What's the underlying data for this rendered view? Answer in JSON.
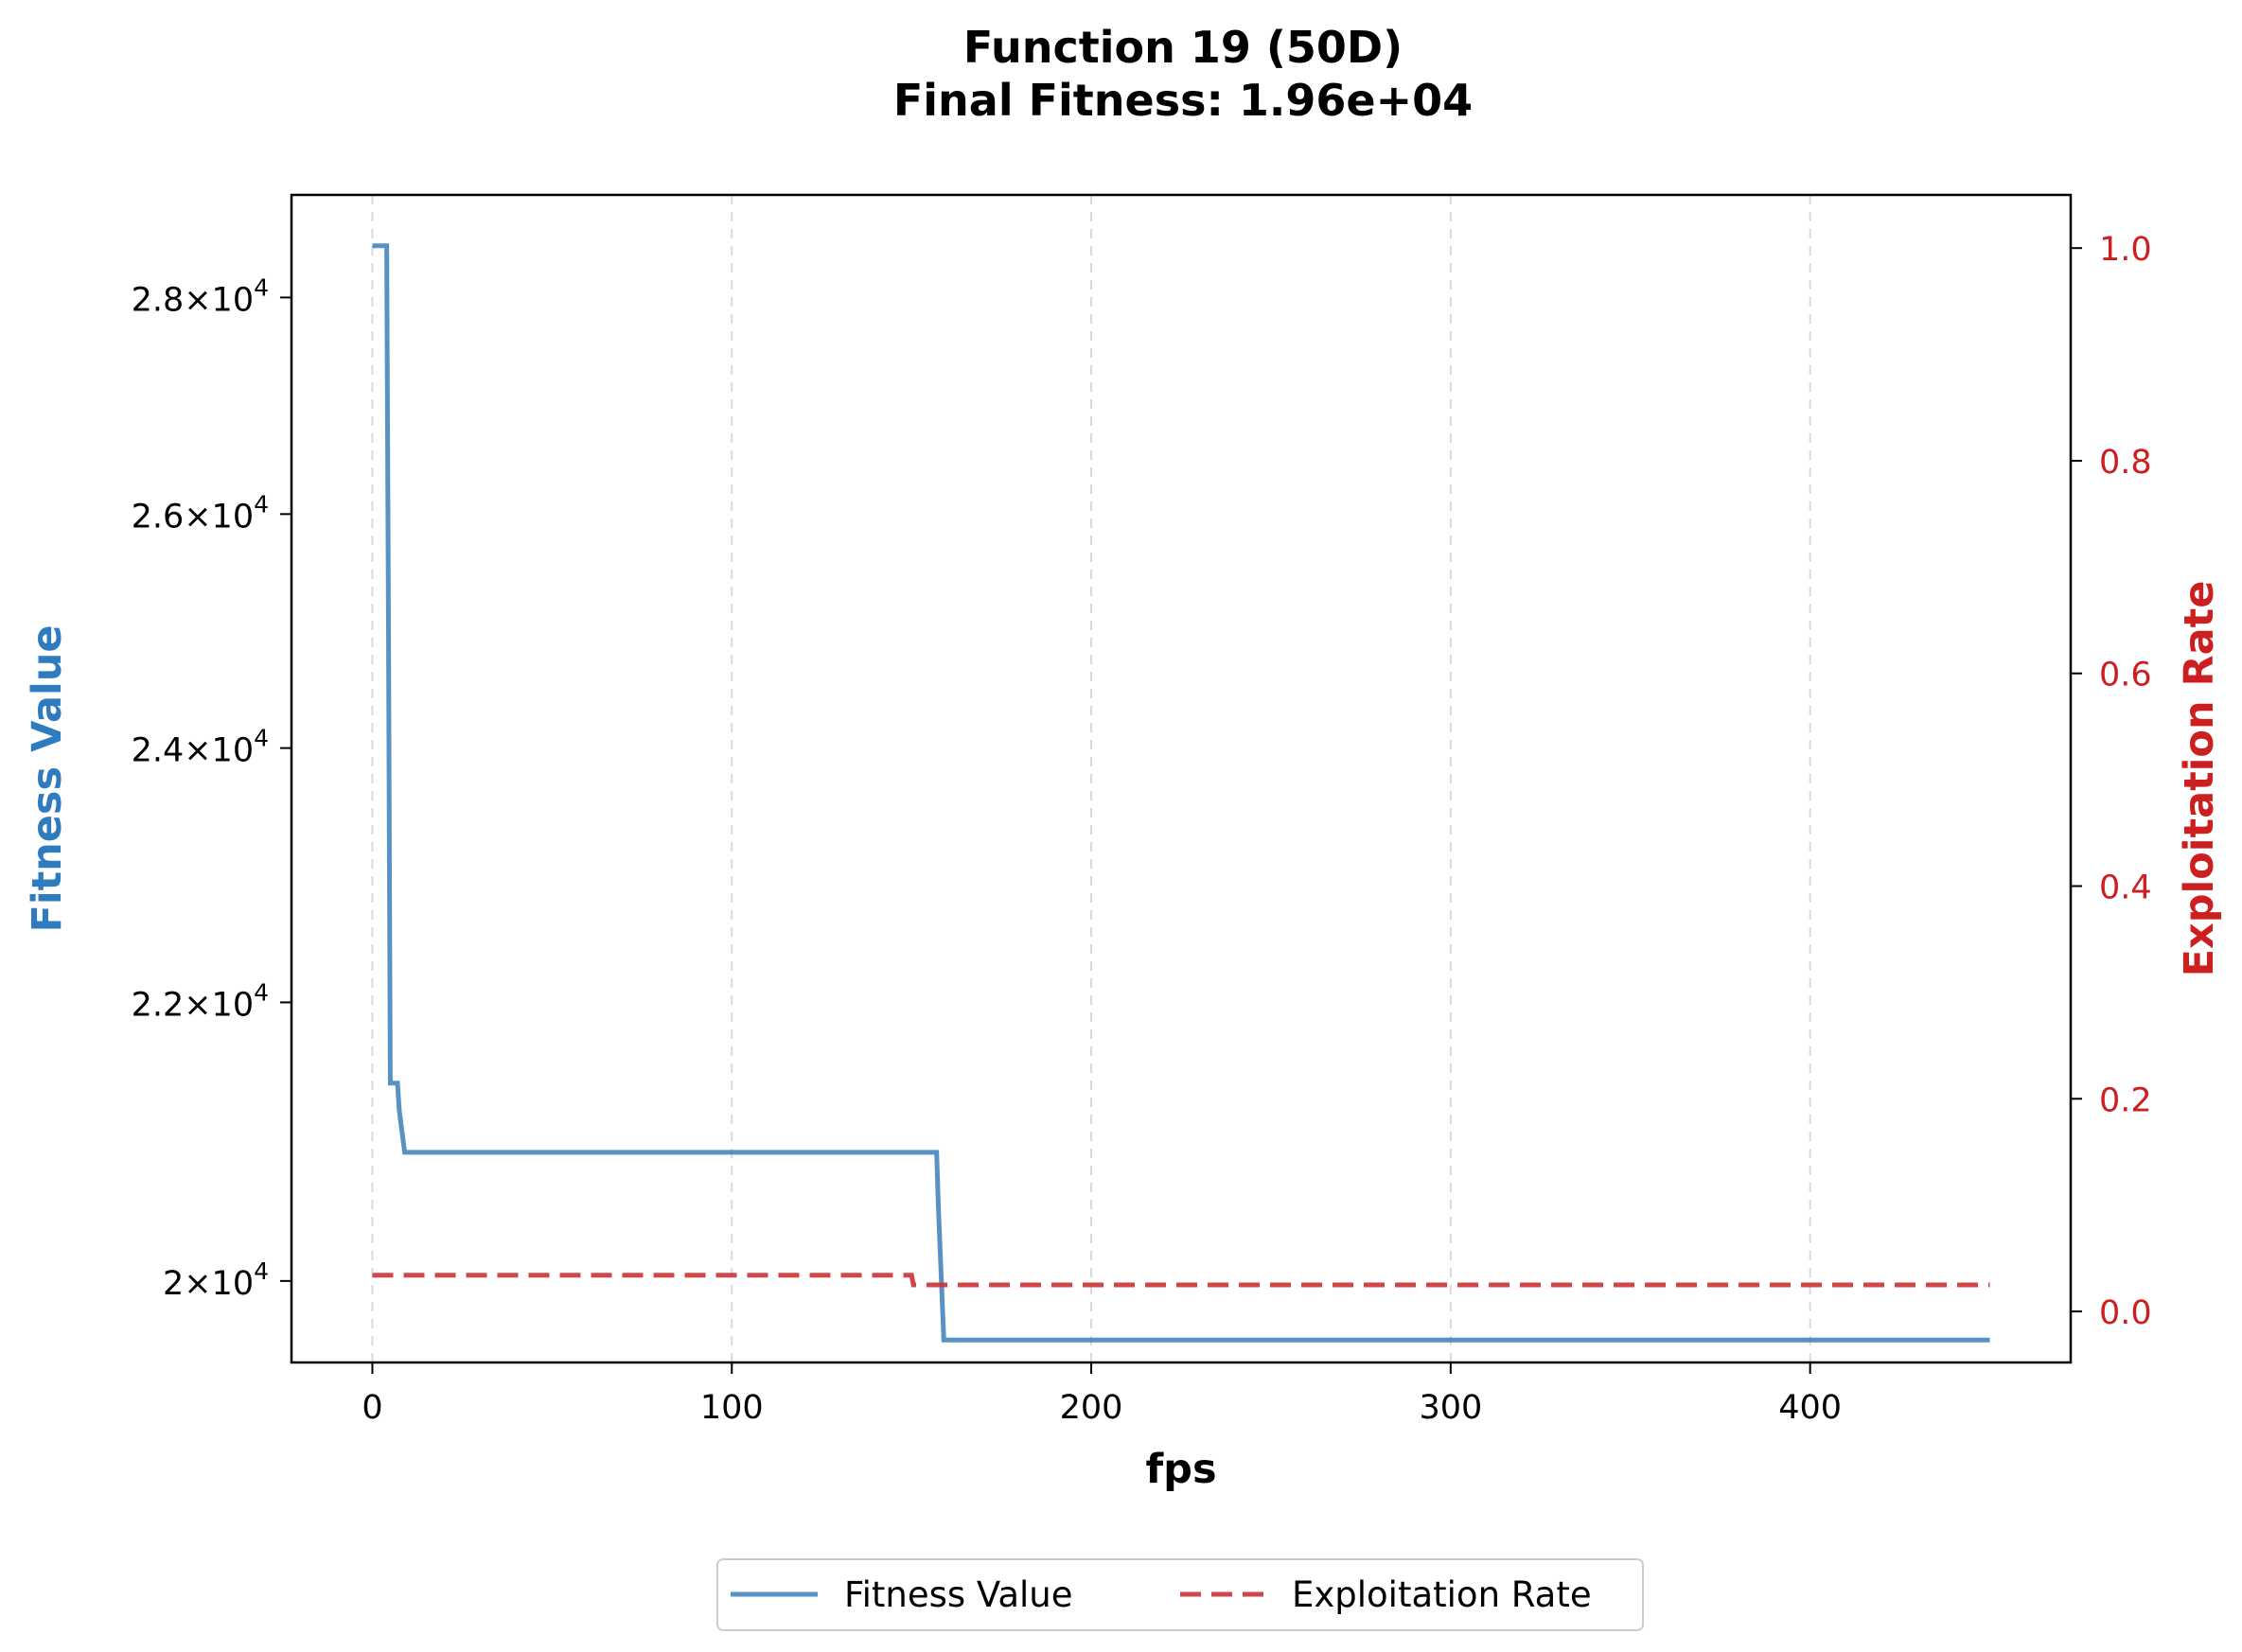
{
  "chart_data": {
    "type": "line",
    "title_line1": "Function 19 (50D)",
    "title_line2": "Final Fitness: 1.96e+04",
    "xlabel": "fps",
    "ylabel_left": "Fitness Value",
    "ylabel_right": "Exploitation Rate",
    "xlim": [
      -22.5,
      472.5
    ],
    "x_ticks": [
      0,
      100,
      200,
      300,
      400
    ],
    "x_tick_labels": [
      "0",
      "100",
      "200",
      "300",
      "400"
    ],
    "y_left_scale": "log",
    "y_left_lim": [
      19450,
      29000
    ],
    "y_left_ticks": [
      {
        "value": 20000,
        "mantissa": "2",
        "exp": "4"
      },
      {
        "value": 22000,
        "mantissa": "2.2",
        "exp": "4"
      },
      {
        "value": 24000,
        "mantissa": "2.4",
        "exp": "4"
      },
      {
        "value": 26000,
        "mantissa": "2.6",
        "exp": "4"
      },
      {
        "value": 28000,
        "mantissa": "2.8",
        "exp": "4"
      }
    ],
    "y_right_lim": [
      -0.048,
      1.05
    ],
    "y_right_ticks": [
      0.0,
      0.2,
      0.4,
      0.6,
      0.8,
      1.0
    ],
    "y_right_tick_labels": [
      "0.0",
      "0.2",
      "0.4",
      "0.6",
      "0.8",
      "1.0"
    ],
    "grid": "x-dashed",
    "legend_position": "bottom-center",
    "series": [
      {
        "name": "Fitness Value",
        "axis": "left",
        "style": "solid",
        "color": "#3a7fb8",
        "x": [
          0,
          4,
          4.5,
          5,
          7,
          7.5,
          9,
          157,
          157.5,
          159,
          450
        ],
        "y": [
          28500,
          28500,
          25000,
          21400,
          21400,
          21200,
          20900,
          20900,
          20500,
          19600,
          19600
        ]
      },
      {
        "name": "Exploitation Rate",
        "axis": "right",
        "style": "dashed",
        "color": "#cc3333",
        "x": [
          0,
          150,
          150.5,
          450
        ],
        "y": [
          0.034,
          0.034,
          0.025,
          0.025
        ]
      }
    ]
  }
}
